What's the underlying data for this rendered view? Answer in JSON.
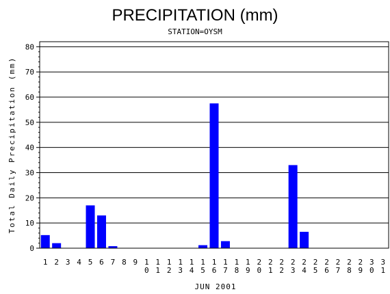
{
  "chart_data": {
    "type": "bar",
    "title": "PRECIPITATION (mm)",
    "subtitle": "STATION=OYSM",
    "xlabel": "JUN 2001",
    "ylabel": "Total Daily Precipitation (mm)",
    "ylim": [
      0,
      82
    ],
    "yticks": [
      0,
      10,
      20,
      30,
      40,
      50,
      60,
      70,
      80
    ],
    "grid": true,
    "bar_color": "#0000ff",
    "categories": [
      "1",
      "2",
      "3",
      "4",
      "5",
      "6",
      "7",
      "8",
      "9",
      "10",
      "11",
      "12",
      "13",
      "14",
      "15",
      "16",
      "17",
      "18",
      "19",
      "20",
      "21",
      "22",
      "23",
      "24",
      "25",
      "26",
      "27",
      "28",
      "29",
      "30",
      "31"
    ],
    "values": [
      5.2,
      2.0,
      0,
      0,
      17.0,
      13.0,
      0.8,
      0,
      0,
      0,
      0,
      0,
      0,
      0,
      1.2,
      57.5,
      2.8,
      0,
      0,
      0,
      0,
      0,
      33.0,
      6.5,
      0,
      0,
      0,
      0,
      0,
      0,
      0
    ]
  }
}
